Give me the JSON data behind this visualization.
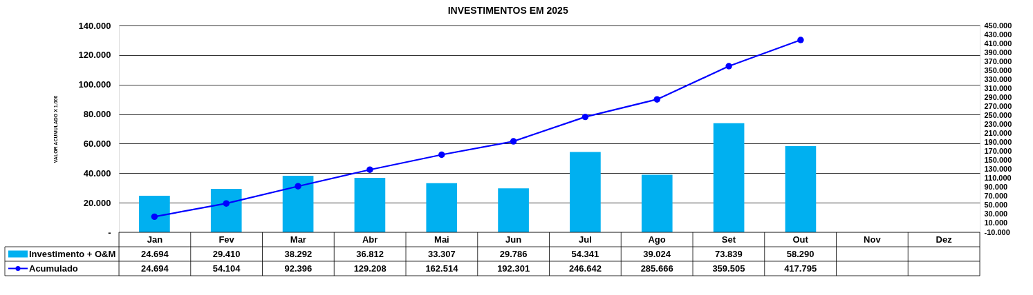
{
  "chart_data": {
    "type": "bar",
    "title": "INVESTIMENTOS EM 2025",
    "ylabel": "VALOR ACUMULADO  X 1.000",
    "categories": [
      "Jan",
      "Fev",
      "Mar",
      "Abr",
      "Mai",
      "Jun",
      "Jul",
      "Ago",
      "Set",
      "Out",
      "Nov",
      "Dez"
    ],
    "series": [
      {
        "name": "Investimento + O&M",
        "color": "#00b0f0",
        "values": [
          24694,
          29410,
          38292,
          36812,
          33307,
          29786,
          54341,
          39024,
          73839,
          58290,
          null,
          null
        ],
        "value_labels": [
          "24.694",
          "29.410",
          "38.292",
          "36.812",
          "33.307",
          "29.786",
          "54.341",
          "39.024",
          "73.839",
          "58.290",
          null,
          null
        ]
      },
      {
        "name": "Acumulado",
        "type": "line",
        "axis": "y2",
        "color": "#0000ff",
        "values": [
          24694,
          54104,
          92396,
          129208,
          162514,
          192301,
          246642,
          285666,
          359505,
          417795,
          null,
          null
        ],
        "value_labels": [
          "24.694",
          "54.104",
          "92.396",
          "129.208",
          "162.514",
          "192.301",
          "246.642",
          "285.666",
          "359.505",
          "417.795",
          null,
          null
        ]
      }
    ],
    "ylim": [
      0,
      140000
    ],
    "yticks": [
      {
        "value": 0,
        "label": "-"
      },
      {
        "value": 20000,
        "label": "20.000"
      },
      {
        "value": 40000,
        "label": "40.000"
      },
      {
        "value": 60000,
        "label": "60.000"
      },
      {
        "value": 80000,
        "label": "80.000"
      },
      {
        "value": 100000,
        "label": "100.000"
      },
      {
        "value": 120000,
        "label": "120.000"
      },
      {
        "value": 140000,
        "label": "140.000"
      }
    ],
    "y2lim": [
      -10000,
      450000
    ],
    "y2ticks": [
      {
        "value": -10000,
        "label": "-10.000"
      },
      {
        "value": 10000,
        "label": "10.000"
      },
      {
        "value": 30000,
        "label": "30.000"
      },
      {
        "value": 50000,
        "label": "50.000"
      },
      {
        "value": 70000,
        "label": "70.000"
      },
      {
        "value": 90000,
        "label": "90.000"
      },
      {
        "value": 110000,
        "label": "110.000"
      },
      {
        "value": 130000,
        "label": "130.000"
      },
      {
        "value": 150000,
        "label": "150.000"
      },
      {
        "value": 170000,
        "label": "170.000"
      },
      {
        "value": 190000,
        "label": "190.000"
      },
      {
        "value": 210000,
        "label": "210.000"
      },
      {
        "value": 230000,
        "label": "230.000"
      },
      {
        "value": 250000,
        "label": "250.000"
      },
      {
        "value": 270000,
        "label": "270.000"
      },
      {
        "value": 290000,
        "label": "290.000"
      },
      {
        "value": 310000,
        "label": "310.000"
      },
      {
        "value": 330000,
        "label": "330.000"
      },
      {
        "value": 350000,
        "label": "350.000"
      },
      {
        "value": 370000,
        "label": "370.000"
      },
      {
        "value": 390000,
        "label": "390.000"
      },
      {
        "value": 410000,
        "label": "410.000"
      },
      {
        "value": 430000,
        "label": "430.000"
      },
      {
        "value": 450000,
        "label": "450.000"
      }
    ],
    "grid": "y",
    "legend": "bottom left",
    "marker": "circle",
    "line_style": "solid"
  }
}
